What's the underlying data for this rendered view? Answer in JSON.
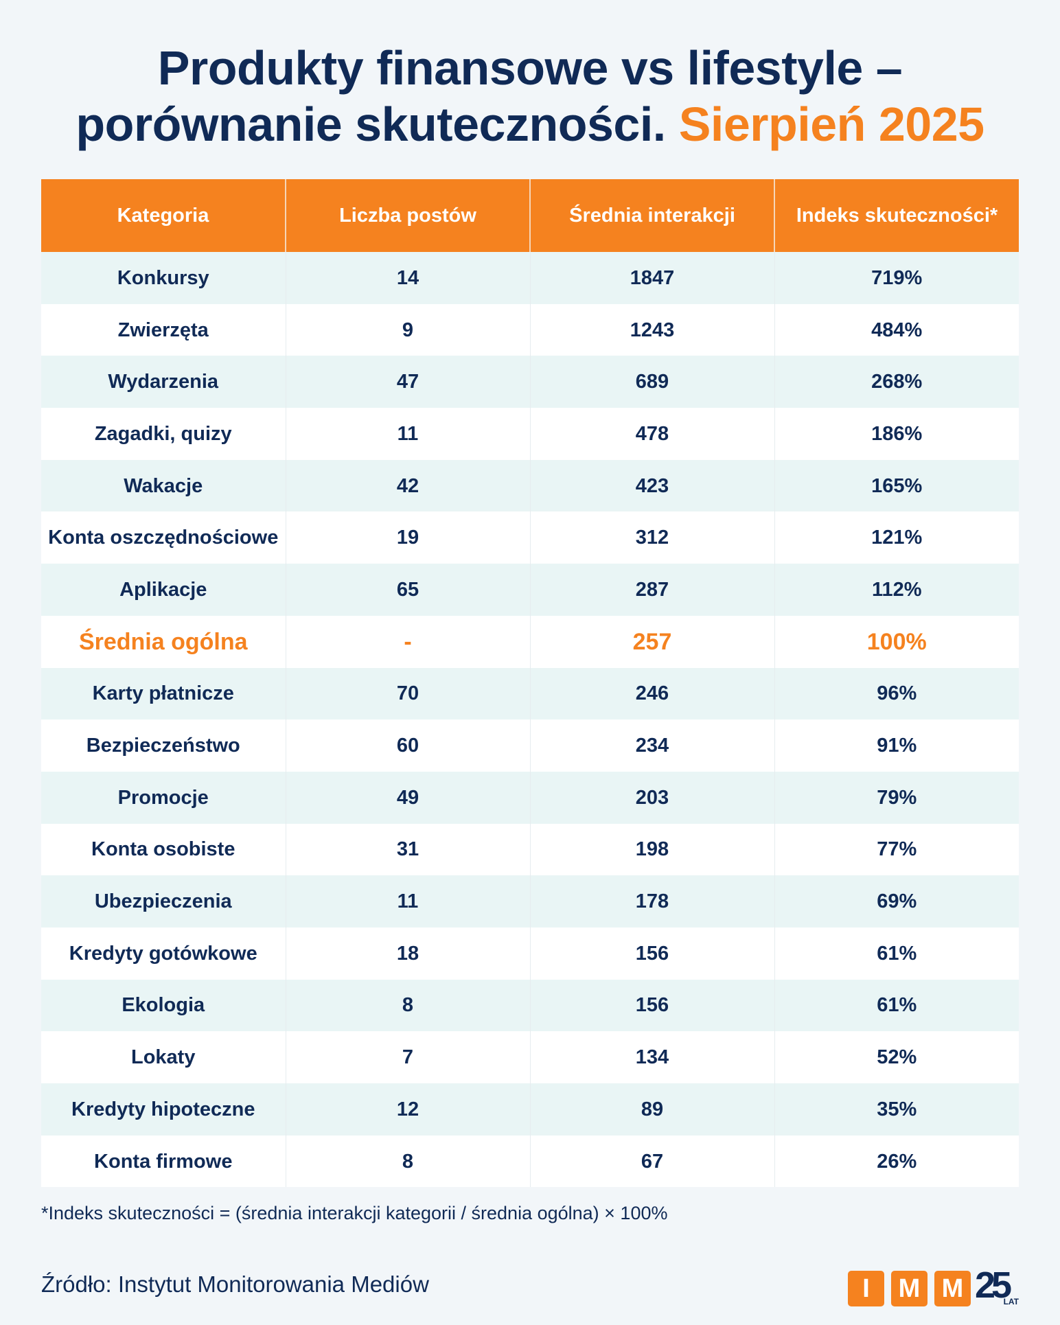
{
  "title": {
    "line1": "Produkty finansowe vs lifestyle –",
    "line2": "porównanie skuteczności.",
    "accent": "Sierpień 2025"
  },
  "table": {
    "headers": [
      "Kategoria",
      "Liczba postów",
      "Średnia interakcji",
      "Indeks skuteczności*"
    ],
    "rows": [
      [
        "Konkursy",
        "14",
        "1847",
        "719%"
      ],
      [
        "Zwierzęta",
        "9",
        "1243",
        "484%"
      ],
      [
        "Wydarzenia",
        "47",
        "689",
        "268%"
      ],
      [
        "Zagadki, quizy",
        "11",
        "478",
        "186%"
      ],
      [
        "Wakacje",
        "42",
        "423",
        "165%"
      ],
      [
        "Konta oszczędnościowe",
        "19",
        "312",
        "121%"
      ],
      [
        "Aplikacje",
        "65",
        "287",
        "112%"
      ],
      [
        "Średnia ogólna",
        "-",
        "257",
        "100%"
      ],
      [
        "Karty płatnicze",
        "70",
        "246",
        "96%"
      ],
      [
        "Bezpieczeństwo",
        "60",
        "234",
        "91%"
      ],
      [
        "Promocje",
        "49",
        "203",
        "79%"
      ],
      [
        "Konta osobiste",
        "31",
        "198",
        "77%"
      ],
      [
        "Ubezpieczenia",
        "11",
        "178",
        "69%"
      ],
      [
        "Kredyty gotówkowe",
        "18",
        "156",
        "61%"
      ],
      [
        "Ekologia",
        "8",
        "156",
        "61%"
      ],
      [
        "Lokaty",
        "7",
        "134",
        "52%"
      ],
      [
        "Kredyty hipoteczne",
        "12",
        "89",
        "35%"
      ],
      [
        "Konta firmowe",
        "8",
        "67",
        "26%"
      ]
    ],
    "highlight_row": "Średnia ogólna"
  },
  "footnote": "*Indeks skuteczności = (średnia interakcji kategorii / średnia ogólna) × 100%",
  "source": "Źródło: Instytut Monitorowania Mediów",
  "logo": {
    "letters": [
      "I",
      "M",
      "M"
    ],
    "number": "25",
    "suffix": "LAT"
  },
  "colors": {
    "navy": "#102a56",
    "orange": "#f5821f",
    "row_alt": "#e9f5f5",
    "background": "#f2f6f9"
  }
}
